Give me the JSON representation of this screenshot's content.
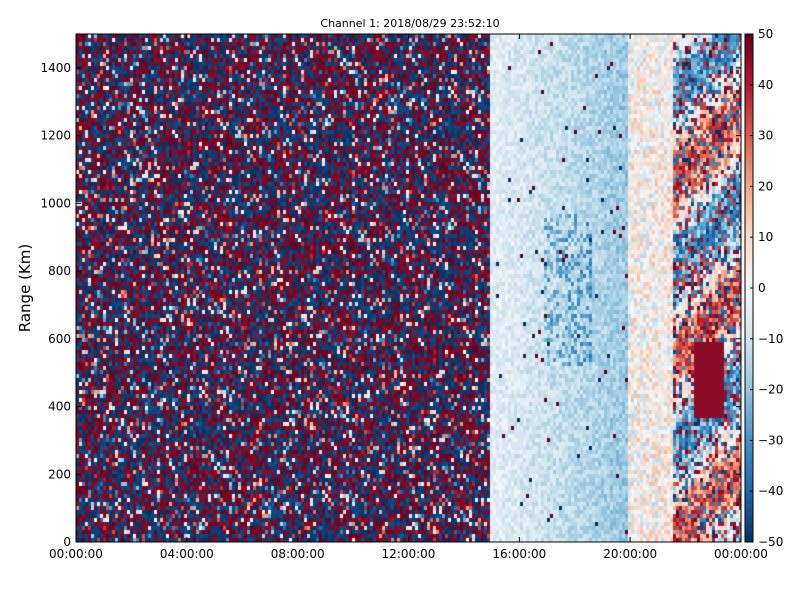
{
  "chart_data": {
    "type": "heatmap",
    "title": "Channel 1: 2018/08/29 23:52:10",
    "xlabel": "",
    "ylabel": "Range (Km)",
    "x_ticks": [
      "00:00:00",
      "04:00:00",
      "08:00:00",
      "12:00:00",
      "16:00:00",
      "20:00:00",
      "00:00:00"
    ],
    "x_tick_hours": [
      0,
      4,
      8,
      12,
      16,
      20,
      24
    ],
    "xlim_hours": [
      0,
      24
    ],
    "y_ticks": [
      0,
      200,
      400,
      600,
      800,
      1000,
      1200,
      1400
    ],
    "ylim": [
      0,
      1500
    ],
    "colorbar": {
      "min": -50,
      "max": 50,
      "ticks": [
        50,
        40,
        30,
        20,
        10,
        0,
        -10,
        -20,
        -30,
        -40,
        -50
      ],
      "tick_labels": [
        "50",
        "40",
        "30",
        "20",
        "10",
        "0",
        "−10",
        "−20",
        "−30",
        "−40",
        "−50"
      ],
      "colormap": "RdBu_r",
      "colors": [
        "#053061",
        "#2166ac",
        "#4393c3",
        "#92c5de",
        "#d1e5f0",
        "#f7f7f7",
        "#fddbc7",
        "#f4a582",
        "#d6604d",
        "#b2182b",
        "#67001f"
      ]
    },
    "regions": [
      {
        "x_range_hours": [
          0,
          14.9
        ],
        "pattern": "random noise, values saturated near ±50"
      },
      {
        "x_range_hours": [
          14.9,
          21.5
        ],
        "pattern": "smooth low values, mostly 0 to −30"
      },
      {
        "x_range_hours": [
          21.5,
          24
        ],
        "pattern": "strong features, values from −50 to +50"
      }
    ],
    "grid": false
  }
}
